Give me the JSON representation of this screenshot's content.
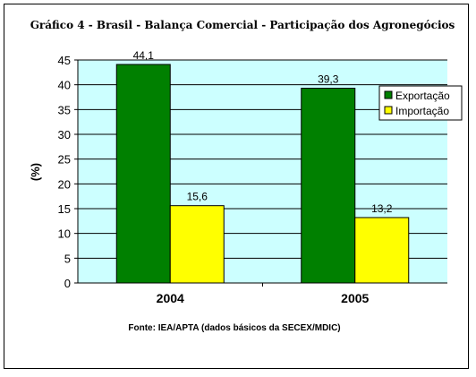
{
  "colors": {
    "plot_background": "#ccffff",
    "exportacao": "#008000",
    "importacao": "#ffff00",
    "bar_border": "#000000",
    "grid": "#000000"
  },
  "footer": {
    "source": "Fonte: IEA/APTA (dados básicos da SECEX/MDIC)"
  },
  "chart_data": {
    "type": "bar",
    "title": "Gráfico 4 - Brasil - Balança Comercial - Participação dos Agronegócios",
    "xlabel": "",
    "ylabel": "(%)",
    "categories": [
      "2004",
      "2005"
    ],
    "series": [
      {
        "name": "Exportação",
        "values": [
          44.1,
          39.3
        ],
        "labels": [
          "44,1",
          "39,3"
        ],
        "color": "#008000"
      },
      {
        "name": "Importação",
        "values": [
          15.6,
          13.2
        ],
        "labels": [
          "15,6",
          "13,2"
        ],
        "color": "#ffff00"
      }
    ],
    "ylim": [
      0,
      45
    ],
    "yticks": [
      0,
      5,
      10,
      15,
      20,
      25,
      30,
      35,
      40,
      45
    ],
    "grid": true,
    "legend_position": "right"
  }
}
